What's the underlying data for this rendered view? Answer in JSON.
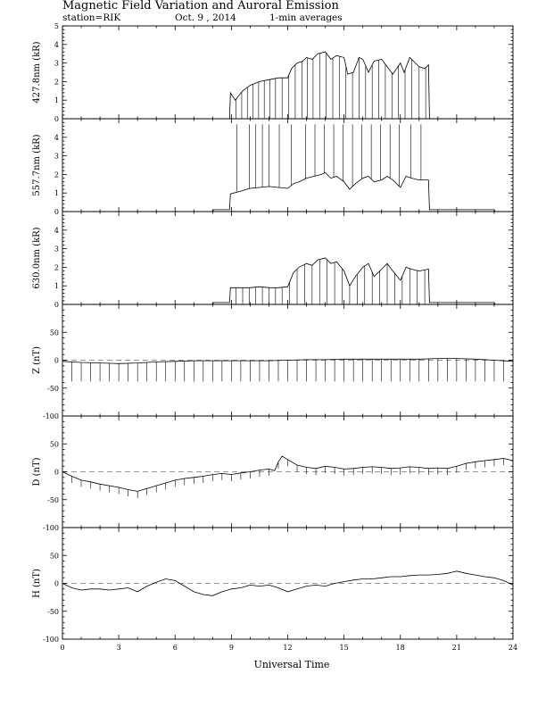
{
  "title": "Magnetic Field Variation and Auroral Emission",
  "station": "station=RIK",
  "date": "Oct. 9 , 2014",
  "averaging": "1-min averages",
  "chart_data": {
    "type": "line",
    "xlabel": "Universal Time",
    "xlim": [
      0,
      24
    ],
    "xticks": [
      0,
      3,
      6,
      9,
      12,
      15,
      18,
      21,
      24
    ],
    "panels": [
      {
        "name": "427.8nm",
        "ylabel": "427.8nm (kR)",
        "ylim": [
          0,
          5
        ],
        "yticks": [
          0,
          1,
          2,
          3,
          4,
          5
        ],
        "zero_line": false,
        "x": [
          0,
          8.9,
          8.95,
          9.2,
          9.6,
          10.0,
          10.5,
          11.0,
          11.5,
          12.0,
          12.2,
          12.5,
          12.8,
          13.0,
          13.3,
          13.6,
          14.0,
          14.3,
          14.6,
          15.0,
          15.2,
          15.5,
          15.8,
          16.0,
          16.3,
          16.6,
          17.0,
          17.3,
          17.6,
          18.0,
          18.2,
          18.5,
          18.8,
          19.0,
          19.3,
          19.5,
          19.55,
          24
        ],
        "y": [
          0,
          0,
          1.4,
          1.0,
          1.5,
          1.8,
          2.0,
          2.1,
          2.2,
          2.2,
          2.7,
          3.0,
          3.1,
          3.3,
          3.2,
          3.5,
          3.6,
          3.2,
          3.4,
          3.3,
          2.4,
          2.5,
          3.3,
          3.2,
          2.5,
          3.1,
          3.2,
          2.8,
          2.4,
          3.0,
          2.5,
          3.3,
          3.0,
          2.8,
          2.7,
          2.9,
          0,
          0
        ],
        "spikes_x": [
          9.25,
          9.55,
          9.85,
          10.15,
          10.45,
          10.75,
          11.05,
          11.35,
          11.7,
          12.05,
          12.4,
          12.75,
          13.05,
          13.35,
          13.7,
          14.05,
          14.4,
          14.75,
          15.1,
          15.45,
          15.8,
          16.15,
          16.5,
          16.85,
          17.2,
          17.55,
          17.9,
          18.25,
          18.6,
          19.0,
          19.35
        ],
        "spikes_to": 0
      },
      {
        "name": "557.7nm",
        "ylabel": "557.7nm (kR)",
        "ylim": [
          0,
          5
        ],
        "yticks": [
          0,
          1,
          2,
          3,
          4
        ],
        "zero_line": false,
        "x": [
          0,
          8.0,
          8.05,
          8.9,
          8.95,
          9.5,
          10.0,
          10.5,
          11.0,
          11.5,
          12.0,
          12.3,
          12.6,
          13.0,
          13.4,
          13.8,
          14.0,
          14.3,
          14.6,
          15.0,
          15.3,
          15.6,
          16.0,
          16.3,
          16.6,
          17.0,
          17.3,
          17.6,
          18.0,
          18.3,
          18.6,
          19.0,
          19.5,
          19.55,
          23.0,
          23.05,
          24
        ],
        "y": [
          0,
          0,
          0.1,
          0.1,
          0.95,
          1.1,
          1.25,
          1.3,
          1.35,
          1.3,
          1.25,
          1.5,
          1.6,
          1.8,
          1.9,
          2.0,
          2.1,
          1.8,
          1.9,
          1.6,
          1.2,
          1.5,
          1.8,
          1.9,
          1.6,
          1.7,
          1.9,
          1.7,
          1.3,
          1.9,
          1.8,
          1.7,
          1.7,
          0.1,
          0.1,
          0,
          0
        ],
        "spikes_x": [
          9.3,
          9.95,
          10.3,
          10.65,
          11.0,
          11.55,
          12.2,
          12.95,
          13.45,
          13.95,
          14.45,
          14.95,
          15.45,
          15.95,
          16.45,
          16.95,
          17.45,
          17.95,
          18.55,
          19.1
        ],
        "spikes_to": 4.7
      },
      {
        "name": "630.0nm",
        "ylabel": "630.0nm (kR)",
        "ylim": [
          0,
          5
        ],
        "yticks": [
          0,
          1,
          2,
          3,
          4
        ],
        "zero_line": false,
        "x": [
          0,
          8.0,
          8.05,
          8.9,
          8.95,
          9.5,
          10.0,
          10.5,
          11.0,
          11.5,
          12.0,
          12.3,
          12.6,
          13.0,
          13.3,
          13.6,
          14.0,
          14.3,
          14.6,
          15.0,
          15.3,
          15.6,
          16.0,
          16.3,
          16.6,
          17.0,
          17.3,
          17.6,
          18.0,
          18.3,
          18.6,
          19.0,
          19.5,
          19.55,
          23.0,
          23.05,
          24
        ],
        "y": [
          0,
          0,
          0.1,
          0.1,
          0.9,
          0.9,
          0.9,
          0.95,
          0.9,
          0.9,
          0.95,
          1.7,
          2.0,
          2.2,
          2.1,
          2.4,
          2.5,
          2.2,
          2.3,
          1.8,
          1.0,
          1.5,
          2.0,
          2.2,
          1.5,
          1.9,
          2.2,
          1.8,
          1.3,
          2.0,
          1.9,
          1.8,
          1.9,
          0.1,
          0.1,
          0,
          0
        ],
        "spikes_x": [
          9.25,
          9.6,
          9.95,
          10.3,
          10.65,
          11.0,
          11.35,
          11.7,
          12.1,
          12.5,
          12.9,
          13.3,
          13.7,
          14.1,
          14.5,
          14.9,
          15.3,
          15.7,
          16.1,
          16.5,
          16.9,
          17.3,
          17.7,
          18.1,
          18.5,
          18.9,
          19.3
        ],
        "spikes_to": 0
      },
      {
        "name": "Z",
        "ylabel": "Z (nT)",
        "ylim": [
          -100,
          100
        ],
        "yticks": [
          -100,
          -50,
          0,
          50
        ],
        "zero_line": true,
        "x": [
          0,
          1,
          2,
          3,
          4,
          5,
          6,
          7,
          8,
          9,
          10,
          11,
          12,
          13,
          14,
          15,
          16,
          17,
          18,
          19,
          20,
          21,
          22,
          23,
          24
        ],
        "y": [
          -2,
          -4,
          -5,
          -6,
          -5,
          -3,
          -2,
          -1,
          -1,
          -1,
          -1,
          -1,
          0,
          1,
          1,
          2,
          2,
          2,
          2,
          2,
          3,
          3,
          2,
          0,
          -2
        ],
        "spikes_x": [
          0.5,
          1.0,
          1.5,
          2.0,
          2.5,
          3.0,
          3.5,
          4.0,
          4.5,
          5.0,
          5.5,
          6.0,
          6.5,
          7.0,
          7.5,
          8.0,
          8.5,
          9.0,
          9.5,
          10.0,
          10.5,
          11.0,
          11.5,
          12.0,
          12.5,
          13.0,
          13.5,
          14.0,
          14.5,
          15.0,
          15.5,
          16.0,
          16.5,
          17.0,
          17.5,
          18.0,
          18.5,
          19.0,
          19.5,
          20.0,
          20.5,
          21.0,
          21.5,
          22.0,
          22.5,
          23.0,
          23.5
        ],
        "spikes_to": -38
      },
      {
        "name": "D",
        "ylabel": "D (nT)",
        "ylim": [
          -100,
          100
        ],
        "yticks": [
          -100,
          -50,
          0,
          50
        ],
        "zero_line": true,
        "x": [
          0,
          0.5,
          1,
          1.5,
          2,
          2.5,
          3,
          3.5,
          4,
          4.5,
          5,
          5.5,
          6,
          6.5,
          7,
          7.5,
          8,
          8.5,
          9,
          9.5,
          10,
          10.5,
          11,
          11.3,
          11.5,
          11.7,
          12,
          12.5,
          13,
          13.5,
          14,
          14.5,
          15,
          15.5,
          16,
          16.5,
          17,
          17.5,
          18,
          18.5,
          19,
          19.5,
          20,
          20.5,
          21,
          21.5,
          22,
          22.5,
          23,
          23.5,
          24
        ],
        "y": [
          0,
          -8,
          -15,
          -18,
          -22,
          -25,
          -28,
          -32,
          -35,
          -30,
          -25,
          -20,
          -15,
          -12,
          -10,
          -8,
          -5,
          -3,
          -5,
          -2,
          0,
          3,
          5,
          2,
          18,
          28,
          22,
          12,
          8,
          6,
          10,
          8,
          5,
          6,
          8,
          9,
          8,
          6,
          7,
          9,
          8,
          6,
          7,
          6,
          10,
          15,
          18,
          20,
          22,
          24,
          20
        ],
        "spikes_x": [
          0.5,
          1.0,
          1.5,
          2.0,
          2.5,
          3.0,
          3.5,
          4.0,
          4.5,
          5.0,
          5.5,
          6.0,
          6.5,
          7.0,
          7.5,
          8.0,
          8.5,
          9.0,
          9.5,
          10.0,
          10.5,
          11.0,
          11.5,
          12.0,
          12.5,
          13.0,
          13.5,
          14.0,
          14.5,
          15.0,
          15.5,
          16.0,
          16.5,
          17.0,
          17.5,
          18.0,
          18.5,
          19.0,
          19.5,
          20.0,
          20.5,
          21.0,
          21.5,
          22.0,
          22.5,
          23.0,
          23.5
        ],
        "spikes_len": 12
      },
      {
        "name": "H",
        "ylabel": "H (nT)",
        "ylim": [
          -100,
          100
        ],
        "yticks": [
          -100,
          -50,
          0,
          50
        ],
        "zero_line": true,
        "x": [
          0,
          0.5,
          1,
          1.5,
          2,
          2.5,
          3,
          3.5,
          4,
          4.5,
          5,
          5.5,
          6,
          6.5,
          7,
          7.5,
          8,
          8.5,
          9,
          9.5,
          10,
          10.5,
          11,
          11.5,
          12,
          12.5,
          13,
          13.5,
          14,
          14.5,
          15,
          15.5,
          16,
          16.5,
          17,
          17.5,
          18,
          18.5,
          19,
          19.5,
          20,
          20.5,
          21,
          21.5,
          22,
          22.5,
          23,
          23.5,
          24
        ],
        "y": [
          0,
          -8,
          -12,
          -10,
          -10,
          -12,
          -10,
          -8,
          -15,
          -5,
          2,
          8,
          5,
          -5,
          -15,
          -20,
          -22,
          -15,
          -10,
          -8,
          -3,
          -5,
          -3,
          -8,
          -15,
          -10,
          -5,
          -3,
          -5,
          0,
          3,
          6,
          8,
          8,
          10,
          12,
          12,
          14,
          15,
          15,
          16,
          18,
          22,
          18,
          15,
          12,
          10,
          5,
          -3
        ],
        "spikes_x": [],
        "spikes_len": 0
      }
    ]
  }
}
